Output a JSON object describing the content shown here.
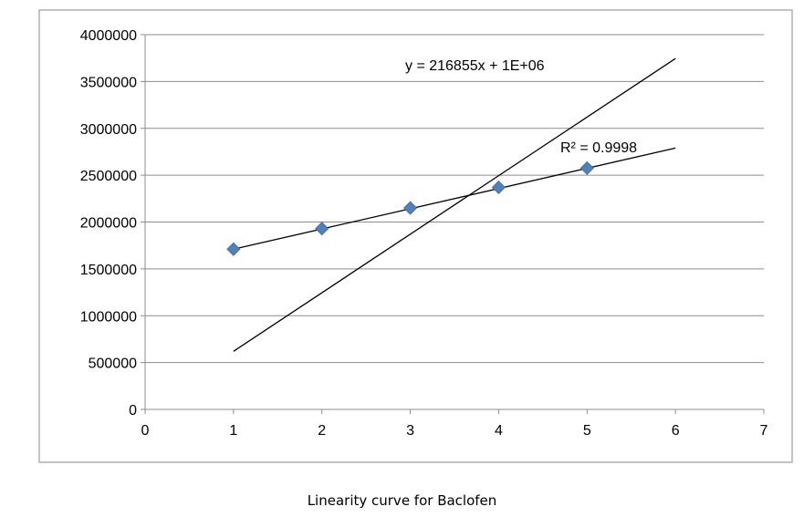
{
  "caption": "Linearity curve for Baclofen",
  "chart_data": {
    "type": "scatter",
    "title": "",
    "xlabel": "",
    "ylabel": "",
    "xlim": [
      0,
      7
    ],
    "ylim": [
      0,
      4000000
    ],
    "x_ticks": [
      "0",
      "1",
      "2",
      "3",
      "4",
      "5",
      "6",
      "7"
    ],
    "y_ticks": [
      "0",
      "500000",
      "1000000",
      "1500000",
      "2000000",
      "2500000",
      "3000000",
      "3500000",
      "4000000"
    ],
    "grid": "horizontal",
    "legend": "none",
    "series": [
      {
        "marker": "diamond",
        "color": "#4f81bd",
        "x": [
          1,
          2,
          3,
          4,
          5
        ],
        "y": [
          1710000,
          1930000,
          2150000,
          2370000,
          2575000
        ]
      }
    ],
    "trendlines": [
      {
        "type": "linear",
        "color": "#000000",
        "x": [
          1,
          6
        ],
        "y": [
          1710000,
          2790000
        ]
      },
      {
        "type": "linear",
        "color": "#000000",
        "x": [
          1,
          6
        ],
        "y": [
          620000,
          3745000
        ]
      }
    ],
    "annotations": {
      "equation": "y = 216855x + 1E+06",
      "r_squared": "R² = 0.9998"
    }
  }
}
